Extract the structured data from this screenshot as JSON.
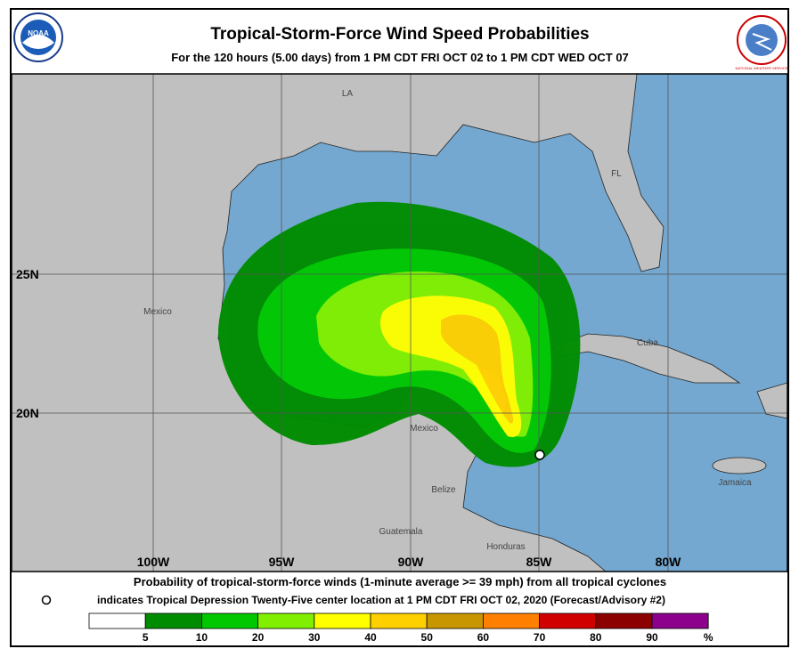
{
  "header": {
    "title": "Tropical-Storm-Force Wind Speed Probabilities",
    "subtitle": "For the 120 hours (5.00 days) from 1 PM CDT FRI OCT 02 to 1 PM CDT WED OCT 07",
    "left_logo": "NOAA",
    "right_logo": "NATIONAL WEATHER SERVICE"
  },
  "map": {
    "latitudes": [
      "25N",
      "20N"
    ],
    "longitudes": [
      "100W",
      "95W",
      "90W",
      "85W",
      "80W"
    ],
    "places": [
      "LA",
      "FL",
      "Mexico",
      "Cuba",
      "Mexico",
      "Belize",
      "Guatemala",
      "Honduras",
      "Jamaica"
    ]
  },
  "footer": {
    "line1": "Probability of tropical-storm-force winds (1-minute average >= 39 mph) from all tropical cyclones",
    "line2": "indicates Tropical Depression Twenty-Five center location at 1 PM CDT FRI OCT 02, 2020 (Forecast/Advisory #2)"
  },
  "legend": {
    "colors": [
      "#ffffff",
      "#008c00",
      "#00c800",
      "#80f000",
      "#ffff00",
      "#ffd000",
      "#c89600",
      "#ff8000",
      "#d00000",
      "#8c0000",
      "#8c008c"
    ],
    "labels": [
      "5",
      "10",
      "20",
      "30",
      "40",
      "50",
      "60",
      "70",
      "80",
      "90",
      "%"
    ]
  }
}
